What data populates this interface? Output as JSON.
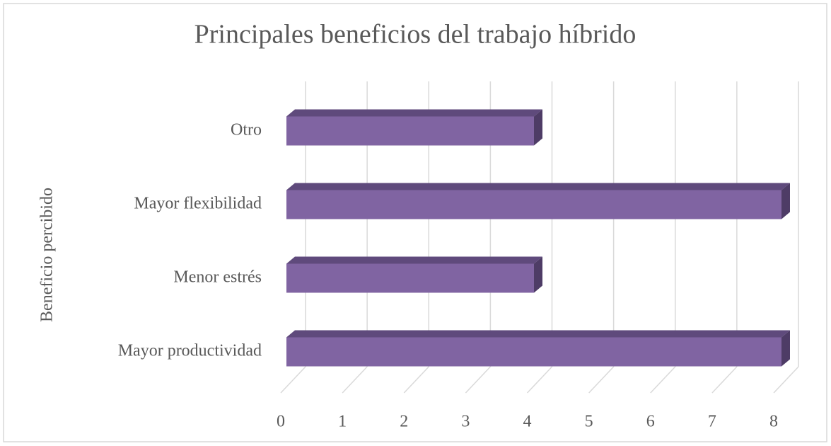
{
  "chart_data": {
    "type": "bar3d_horizontal",
    "title": "Principales beneficios del trabajo híbrido",
    "y_axis_label": "Beneficio percibido",
    "categories": [
      "Mayor productividad",
      "Menor estrés",
      "Mayor flexibilidad",
      "Otro"
    ],
    "values": [
      8,
      4,
      8,
      4
    ],
    "color": "#8064a2",
    "xlim": [
      0,
      8
    ],
    "xticks": [
      0,
      1,
      2,
      3,
      4,
      5,
      6,
      7,
      8
    ],
    "grid": true
  }
}
